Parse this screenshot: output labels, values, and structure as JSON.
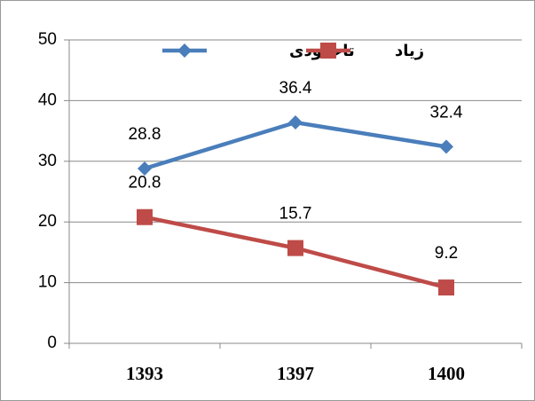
{
  "chart_data": {
    "type": "line",
    "categories": [
      "1393",
      "1397",
      "1400"
    ],
    "series": [
      {
        "name": "تاحدودی",
        "color": "#4a7ebb",
        "marker": "diamond",
        "values": [
          28.8,
          36.4,
          32.4
        ]
      },
      {
        "name": "زیاد",
        "color": "#be4b48",
        "marker": "square",
        "values": [
          20.8,
          15.7,
          9.2
        ]
      }
    ],
    "ylim": [
      0,
      50
    ],
    "yticks": [
      0,
      10,
      20,
      30,
      40,
      50
    ],
    "grid": true,
    "legend": "top"
  }
}
